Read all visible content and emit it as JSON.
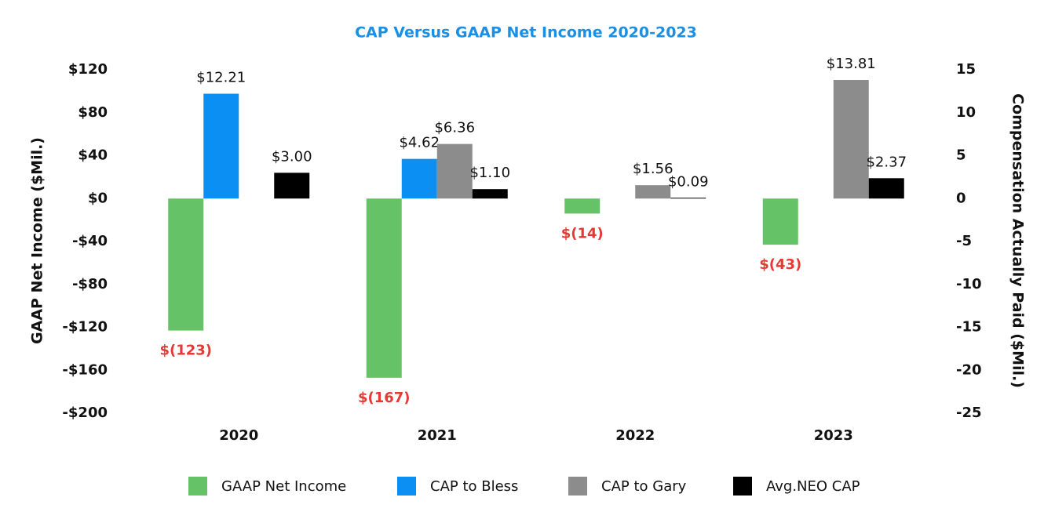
{
  "chart_data": {
    "type": "bar",
    "title": "CAP Versus GAAP Net Income 2020-2023",
    "y_label": "GAAP Net Income ($Mil.)",
    "y2_label": "Compensation Actually Paid ($Mil.)",
    "categories": [
      "2020",
      "2021",
      "2022",
      "2023"
    ],
    "series": [
      {
        "name": "GAAP Net Income",
        "color": "#66c266",
        "values": [
          -123,
          -167,
          -14,
          -43
        ],
        "value_labels": [
          "$(123)",
          "$(167)",
          "$(14)",
          "$(43)"
        ]
      },
      {
        "name": "CAP to Bless",
        "color": "#0b8ff2",
        "axis": "y2",
        "values": [
          12.21,
          4.62,
          null,
          null
        ],
        "value_labels": [
          "$12.21",
          "$4.62",
          null,
          null
        ]
      },
      {
        "name": "CAP to Gary",
        "color": "#8c8c8c",
        "axis": "y2",
        "values": [
          null,
          6.36,
          1.56,
          13.81
        ],
        "value_labels": [
          null,
          "$6.36",
          "$1.56",
          "$13.81"
        ]
      },
      {
        "name": "Avg.NEO CAP",
        "color": "#000000",
        "axis": "y2",
        "values": [
          3.0,
          1.1,
          0.09,
          2.37
        ],
        "value_labels": [
          "$3.00",
          "$1.10",
          "$0.09",
          "$2.37"
        ]
      }
    ],
    "ylim": [
      -200,
      120
    ],
    "yticks": [
      {
        "value": -200,
        "label": "-$200"
      },
      {
        "value": -160,
        "label": "-$160"
      },
      {
        "value": -120,
        "label": "-$120"
      },
      {
        "value": -80,
        "label": "-$80"
      },
      {
        "value": -40,
        "label": "-$40"
      },
      {
        "value": 0,
        "label": "$0"
      },
      {
        "value": 40,
        "label": "$40"
      },
      {
        "value": 80,
        "label": "$80"
      },
      {
        "value": 120,
        "label": "$120"
      }
    ],
    "y2lim": [
      -25,
      15
    ],
    "y2ticks": [
      -25,
      -20,
      -15,
      -10,
      -5,
      0,
      5,
      10,
      15
    ],
    "legend": "bottom"
  }
}
